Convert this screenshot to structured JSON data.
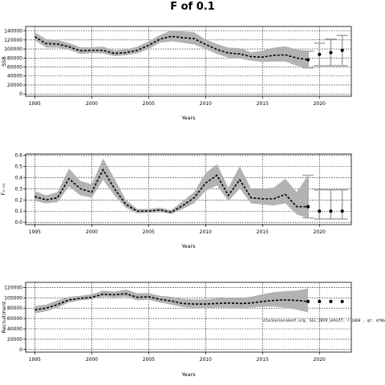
{
  "title": "F of 0.1",
  "note": "stockassessment.org, GLL_2019_anhaf7, r.1868 , gt: df0b",
  "chart_data": [
    {
      "type": "line",
      "ylabel": "SSB",
      "xlabel": "Years",
      "xlim": [
        1994.2,
        2022.8
      ],
      "ylim": [
        -5000,
        150000
      ],
      "xticks": [
        1995,
        2000,
        2005,
        2010,
        2015,
        2020
      ],
      "yticks": [
        0,
        20000,
        40000,
        60000,
        80000,
        100000,
        120000,
        140000
      ],
      "grid": true,
      "x": [
        1995,
        1996,
        1997,
        1998,
        1999,
        2000,
        2001,
        2002,
        2003,
        2004,
        2005,
        2006,
        2007,
        2008,
        2009,
        2010,
        2011,
        2012,
        2013,
        2014,
        2015,
        2016,
        2017,
        2018,
        2019
      ],
      "estimate": [
        127000,
        112000,
        111000,
        105000,
        96000,
        97000,
        97000,
        90000,
        92000,
        97000,
        108000,
        122000,
        128000,
        125000,
        123000,
        110000,
        99000,
        91000,
        89000,
        83000,
        82000,
        86000,
        87000,
        80000,
        76000
      ],
      "lower": [
        119000,
        103000,
        103000,
        98000,
        89000,
        91000,
        90000,
        84000,
        86000,
        90000,
        100000,
        114000,
        117000,
        114000,
        110000,
        100000,
        89000,
        81000,
        79000,
        74000,
        71000,
        72000,
        72000,
        63000,
        58000
      ],
      "upper": [
        137000,
        122000,
        120000,
        113000,
        104000,
        104000,
        105000,
        97000,
        99000,
        105000,
        117000,
        131000,
        141000,
        139000,
        137000,
        121000,
        111000,
        103000,
        102000,
        93000,
        96000,
        103000,
        106000,
        99000,
        95000
      ],
      "forecast_x": [
        2019,
        2020,
        2021,
        2022
      ],
      "forecast_mid": [
        76000,
        88000,
        92000,
        97000
      ],
      "forecast_lower": [
        58000,
        63000,
        63000,
        63000
      ],
      "forecast_upper": [
        95000,
        113000,
        122000,
        130000
      ]
    },
    {
      "type": "line",
      "ylabel": "F₅₋₂₁",
      "xlabel": "Years",
      "xlim": [
        1994.2,
        2022.8
      ],
      "ylim": [
        -0.02,
        0.61
      ],
      "xticks": [
        1995,
        2000,
        2005,
        2010,
        2015,
        2020
      ],
      "yticks": [
        "0.0",
        "0.1",
        "0.2",
        "0.3",
        "0.4",
        "0.5",
        "0.6"
      ],
      "grid": true,
      "x": [
        1995,
        1996,
        1997,
        1998,
        1999,
        2000,
        2001,
        2002,
        2003,
        2004,
        2005,
        2006,
        2007,
        2008,
        2009,
        2010,
        2011,
        2012,
        2013,
        2014,
        2015,
        2016,
        2017,
        2018,
        2019
      ],
      "estimate": [
        0.23,
        0.2,
        0.22,
        0.39,
        0.3,
        0.27,
        0.47,
        0.3,
        0.16,
        0.1,
        0.1,
        0.11,
        0.09,
        0.15,
        0.22,
        0.35,
        0.42,
        0.24,
        0.38,
        0.22,
        0.21,
        0.21,
        0.25,
        0.14,
        0.14
      ],
      "lower": [
        0.19,
        0.17,
        0.18,
        0.32,
        0.24,
        0.22,
        0.38,
        0.24,
        0.13,
        0.08,
        0.085,
        0.09,
        0.075,
        0.12,
        0.17,
        0.28,
        0.33,
        0.19,
        0.3,
        0.17,
        0.16,
        0.15,
        0.17,
        0.07,
        0.04
      ],
      "upper": [
        0.28,
        0.24,
        0.27,
        0.48,
        0.37,
        0.34,
        0.57,
        0.39,
        0.2,
        0.12,
        0.12,
        0.13,
        0.11,
        0.19,
        0.27,
        0.44,
        0.52,
        0.31,
        0.5,
        0.3,
        0.3,
        0.31,
        0.39,
        0.27,
        0.42
      ],
      "forecast_x": [
        2019,
        2020,
        2021,
        2022
      ],
      "forecast_mid": [
        0.14,
        0.1,
        0.1,
        0.1
      ],
      "forecast_lower": [
        0.04,
        0.03,
        0.03,
        0.03
      ],
      "forecast_upper": [
        0.42,
        0.29,
        0.29,
        0.29
      ]
    },
    {
      "type": "line",
      "ylabel": "Recruitment",
      "xlabel": "Years",
      "xlim": [
        1994.2,
        2022.8
      ],
      "ylim": [
        -5000,
        130000
      ],
      "xticks": [
        1995,
        2000,
        2005,
        2010,
        2015,
        2020
      ],
      "yticks": [
        0,
        20000,
        40000,
        60000,
        80000,
        100000,
        120000
      ],
      "grid": true,
      "x": [
        1995,
        1996,
        1997,
        1998,
        1999,
        2000,
        2001,
        2002,
        2003,
        2004,
        2005,
        2006,
        2007,
        2008,
        2009,
        2010,
        2011,
        2012,
        2013,
        2014,
        2015,
        2016,
        2017,
        2018,
        2019
      ],
      "estimate": [
        77000,
        80000,
        87000,
        96000,
        99000,
        101000,
        107000,
        106000,
        108000,
        101000,
        102000,
        97000,
        94000,
        89000,
        88000,
        88000,
        89000,
        90000,
        89000,
        90000,
        93000,
        95000,
        96000,
        95000,
        93000
      ],
      "lower": [
        70000,
        74000,
        81000,
        91000,
        95000,
        97000,
        102000,
        101000,
        102000,
        95000,
        96000,
        91000,
        87000,
        82000,
        80000,
        80000,
        81000,
        81000,
        80000,
        81000,
        83000,
        83000,
        81000,
        77000,
        72000
      ],
      "upper": [
        84000,
        87000,
        95000,
        102000,
        104000,
        107000,
        114000,
        112000,
        116000,
        109000,
        109000,
        104000,
        102000,
        98000,
        97000,
        97000,
        99000,
        101000,
        100000,
        102000,
        107000,
        111000,
        113000,
        114000,
        118000
      ],
      "forecast_x": [
        2019,
        2020,
        2021,
        2022
      ],
      "forecast_mid": [
        93000,
        93000,
        93000,
        93000
      ],
      "forecast_lower": [],
      "forecast_upper": []
    }
  ]
}
